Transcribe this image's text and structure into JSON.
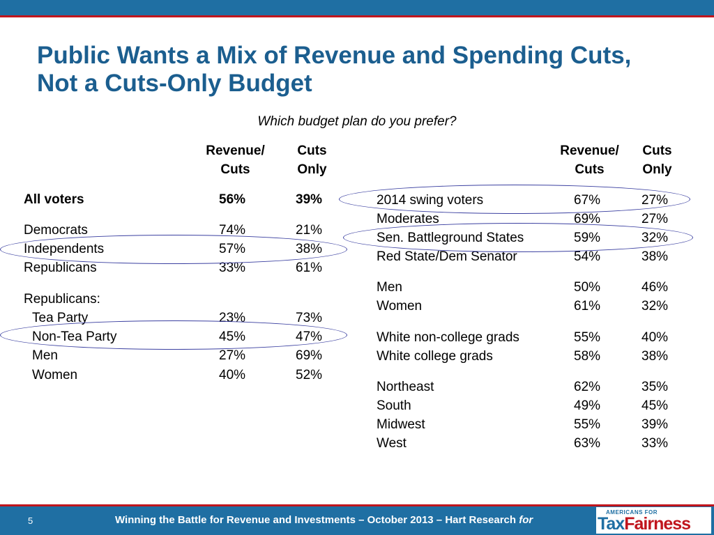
{
  "title": "Public Wants a Mix of Revenue and Spending Cuts, Not a Cuts-Only Budget",
  "subtitle": "Which budget plan do you prefer?",
  "columns": {
    "revenue_1": "Revenue/",
    "revenue_2": "Cuts",
    "cuts_1": "Cuts",
    "cuts_2": "Only"
  },
  "left_rows": [
    {
      "label": "All voters",
      "revenue": "56%",
      "cuts": "39%"
    },
    {
      "label": "Democrats",
      "revenue": "74%",
      "cuts": "21%"
    },
    {
      "label": "Independents",
      "revenue": "57%",
      "cuts": "38%"
    },
    {
      "label": "Republicans",
      "revenue": "33%",
      "cuts": "61%"
    },
    {
      "label": "Republicans:",
      "revenue": "",
      "cuts": ""
    },
    {
      "label": "Tea Party",
      "revenue": "23%",
      "cuts": "73%"
    },
    {
      "label": "Non-Tea Party",
      "revenue": "45%",
      "cuts": "47%"
    },
    {
      "label": "Men",
      "revenue": "27%",
      "cuts": "69%"
    },
    {
      "label": "Women",
      "revenue": "40%",
      "cuts": "52%"
    }
  ],
  "right_rows": [
    {
      "label": "2014 swing voters",
      "revenue": "67%",
      "cuts": "27%"
    },
    {
      "label": "Moderates",
      "revenue": "69%",
      "cuts": "27%"
    },
    {
      "label": "Sen. Battleground States",
      "revenue": "59%",
      "cuts": "32%"
    },
    {
      "label": "Red State/Dem Senator",
      "revenue": "54%",
      "cuts": "38%"
    },
    {
      "label": "Men",
      "revenue": "50%",
      "cuts": "46%"
    },
    {
      "label": "Women",
      "revenue": "61%",
      "cuts": "32%"
    },
    {
      "label": "White non-college grads",
      "revenue": "55%",
      "cuts": "40%"
    },
    {
      "label": "White college grads",
      "revenue": "58%",
      "cuts": "38%"
    },
    {
      "label": "Northeast",
      "revenue": "62%",
      "cuts": "35%"
    },
    {
      "label": "South",
      "revenue": "49%",
      "cuts": "45%"
    },
    {
      "label": "Midwest",
      "revenue": "55%",
      "cuts": "39%"
    },
    {
      "label": "West",
      "revenue": "63%",
      "cuts": "33%"
    }
  ],
  "footer": {
    "page_number": "5",
    "text": "Winning the Battle for Revenue and Investments – October 2013 – Hart Research",
    "for": "for"
  },
  "logo": {
    "top": "AMERICANS FOR",
    "tax": "Tax",
    "fairness": "Fairness"
  },
  "colors": {
    "bar_blue": "#1f6fa3",
    "accent_red": "#c0151d",
    "title_blue": "#1b5e8f",
    "ellipse": "#3a3fa0"
  }
}
